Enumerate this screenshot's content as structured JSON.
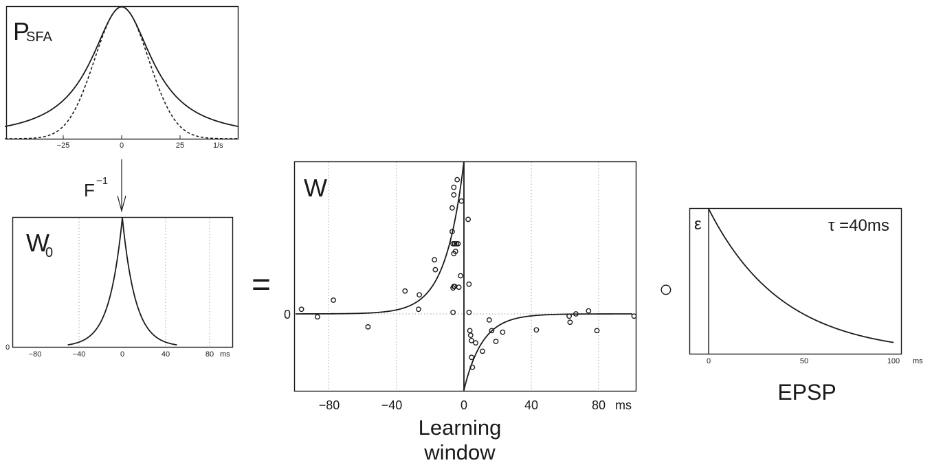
{
  "panels": {
    "psfa": {
      "label_main": "P",
      "label_sub": "SFA",
      "ticks": [
        "−25",
        "0",
        "25"
      ],
      "unit": "1/s"
    },
    "arrow": {
      "label": "F",
      "superscript": "−1"
    },
    "w0": {
      "label_main": "W",
      "label_sub": "0",
      "ticks": [
        "−80",
        "−40",
        "0",
        "40",
        "80"
      ],
      "unit": "ms",
      "y_zero": "0"
    },
    "equals": "=",
    "w": {
      "label": "W",
      "ticks": [
        "−80",
        "−40",
        "0",
        "40",
        "80"
      ],
      "unit": "ms",
      "y_zero": "0",
      "xlabel_line1": "Learning",
      "xlabel_line2": "window"
    },
    "conv": "○",
    "epsp": {
      "label": "ε",
      "tau": "τ =40ms",
      "ticks": [
        "0",
        "50",
        "100"
      ],
      "unit": "ms",
      "title": "EPSP"
    }
  },
  "chart_data": [
    {
      "type": "line",
      "panel": "psfa",
      "xlim": [
        -50,
        50
      ],
      "xticks": [
        -25,
        0,
        25
      ],
      "xunit": "1/s",
      "series": [
        {
          "style": "solid",
          "shape": "lorentzian",
          "peak_x": 0,
          "half_width": 16
        },
        {
          "style": "dashed",
          "shape": "gaussian",
          "peak_x": 0,
          "sigma": 11.5
        }
      ],
      "grid": false
    },
    {
      "type": "line",
      "panel": "w0",
      "xlim": [
        -100,
        100
      ],
      "xticks": [
        -80,
        -40,
        0,
        40,
        80
      ],
      "xunit": "ms",
      "series": [
        {
          "style": "solid",
          "shape": "double-exponential",
          "peak_x": 0,
          "tau_ms": 12
        }
      ],
      "grid": true
    },
    {
      "type": "scatter",
      "panel": "w",
      "xlim": [
        -100,
        100
      ],
      "ylim": [
        -1,
        2
      ],
      "xticks": [
        -80,
        -40,
        0,
        40,
        80
      ],
      "xunit": "ms",
      "fit": [
        {
          "range": "t<0",
          "amplitude": 2.0,
          "tau_ms": 11
        },
        {
          "range": "t>0",
          "amplitude": -1.0,
          "tau_ms": 11
        }
      ],
      "points": [
        [
          -96.5,
          0.06
        ],
        [
          -87,
          -0.04
        ],
        [
          -77.5,
          0.18
        ],
        [
          -57,
          -0.17
        ],
        [
          -35,
          0.3
        ],
        [
          -26.5,
          0.25
        ],
        [
          -27,
          0.06
        ],
        [
          -17.5,
          0.71
        ],
        [
          -17,
          0.58
        ],
        [
          -7,
          1.08
        ],
        [
          -7,
          1.39
        ],
        [
          -6,
          1.56
        ],
        [
          -6,
          1.66
        ],
        [
          -4,
          1.76
        ],
        [
          -1.5,
          1.48
        ],
        [
          -6.5,
          0.92
        ],
        [
          -5.5,
          0.92
        ],
        [
          -3.5,
          0.92
        ],
        [
          -6,
          0.79
        ],
        [
          -5,
          0.82
        ],
        [
          -4.5,
          0.92
        ],
        [
          -2,
          0.5
        ],
        [
          -3,
          0.35
        ],
        [
          -5.5,
          0.36
        ],
        [
          -6,
          0.36
        ],
        [
          -6.5,
          0.34
        ],
        [
          -6.5,
          0.02
        ],
        [
          2.5,
          1.24
        ],
        [
          3,
          0.39
        ],
        [
          3,
          0.02
        ],
        [
          3.5,
          -0.22
        ],
        [
          4,
          -0.28
        ],
        [
          4.5,
          -0.35
        ],
        [
          4.5,
          -0.57
        ],
        [
          5,
          -0.7
        ],
        [
          7,
          -0.38
        ],
        [
          11,
          -0.49
        ],
        [
          15,
          -0.08
        ],
        [
          16.5,
          -0.22
        ],
        [
          19,
          -0.36
        ],
        [
          23,
          -0.24
        ],
        [
          43,
          -0.21
        ],
        [
          62.5,
          -0.03
        ],
        [
          63,
          -0.11
        ],
        [
          66.5,
          0.0
        ],
        [
          74,
          0.04
        ],
        [
          79,
          -0.22
        ],
        [
          101,
          -0.03
        ]
      ],
      "grid": true
    },
    {
      "type": "line",
      "panel": "epsp",
      "xlim": [
        -12,
        100
      ],
      "xticks": [
        0,
        50,
        100
      ],
      "xunit": "ms",
      "series": [
        {
          "style": "solid",
          "shape": "exponential-decay",
          "onset_ms": 0,
          "tau_ms": 40
        }
      ],
      "grid": false
    }
  ]
}
